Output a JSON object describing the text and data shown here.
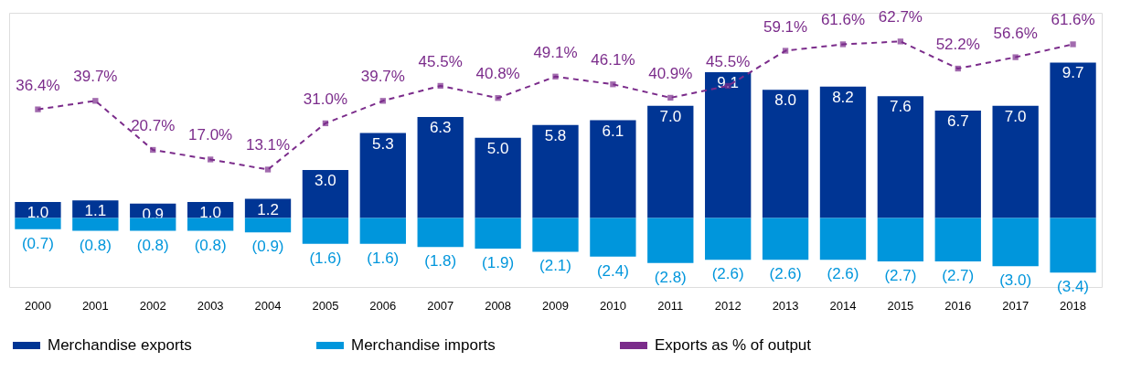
{
  "chart_data": {
    "type": "bar",
    "stacked": true,
    "categories": [
      "2000",
      "2001",
      "2002",
      "2003",
      "2004",
      "2005",
      "2006",
      "2007",
      "2008",
      "2009",
      "2010",
      "2011",
      "2012",
      "2013",
      "2014",
      "2015",
      "2016",
      "2017",
      "2018"
    ],
    "series": [
      {
        "name": "Merchandise exports",
        "color": "#003594",
        "values": [
          1.0,
          1.1,
          0.9,
          1.0,
          1.2,
          3.0,
          5.3,
          6.3,
          5.0,
          5.8,
          6.1,
          7.0,
          9.1,
          8.0,
          8.2,
          7.6,
          6.7,
          7.0,
          9.7
        ],
        "value_labels": [
          "1.0",
          "1.1",
          "0.9",
          "1.0",
          "1.2",
          "3.0",
          "5.3",
          "6.3",
          "5.0",
          "5.8",
          "6.1",
          "7.0",
          "9.1",
          "8.0",
          "8.2",
          "7.6",
          "6.7",
          "7.0",
          "9.7"
        ]
      },
      {
        "name": "Merchandise imports",
        "color": "#0096dc",
        "values": [
          -0.7,
          -0.8,
          -0.8,
          -0.8,
          -0.9,
          -1.6,
          -1.6,
          -1.8,
          -1.9,
          -2.1,
          -2.4,
          -2.8,
          -2.6,
          -2.6,
          -2.6,
          -2.7,
          -2.7,
          -3.0,
          -3.4
        ],
        "value_labels": [
          "(0.7)",
          "(0.8)",
          "(0.8)",
          "(0.8)",
          "(0.9)",
          "(1.6)",
          "(1.6)",
          "(1.8)",
          "(1.9)",
          "(2.1)",
          "(2.4)",
          "(2.8)",
          "(2.6)",
          "(2.6)",
          "(2.6)",
          "(2.7)",
          "(2.7)",
          "(3.0)",
          "(3.4)"
        ]
      },
      {
        "name": "Exports as % of output",
        "color": "#7b2c8b",
        "type": "line",
        "axis": "y2",
        "values": [
          36.4,
          39.7,
          20.7,
          17.0,
          13.1,
          31.0,
          39.7,
          45.5,
          40.8,
          49.1,
          46.1,
          40.9,
          45.5,
          59.1,
          61.6,
          62.7,
          52.2,
          56.6,
          61.6
        ],
        "value_labels": [
          "36.4%",
          "39.7%",
          "20.7%",
          "17.0%",
          "13.1%",
          "31.0%",
          "39.7%",
          "45.5%",
          "40.8%",
          "49.1%",
          "46.1%",
          "40.9%",
          "45.5%",
          "59.1%",
          "61.6%",
          "62.7%",
          "52.2%",
          "56.6%",
          "61.6%"
        ]
      }
    ],
    "ylim": [
      -4.3,
      12.8
    ],
    "y2lim": [
      -32.4,
      73.8
    ],
    "tick_labels": "x",
    "grid": false,
    "legend": "bottom",
    "marker": "square",
    "line_style": "dashed"
  }
}
